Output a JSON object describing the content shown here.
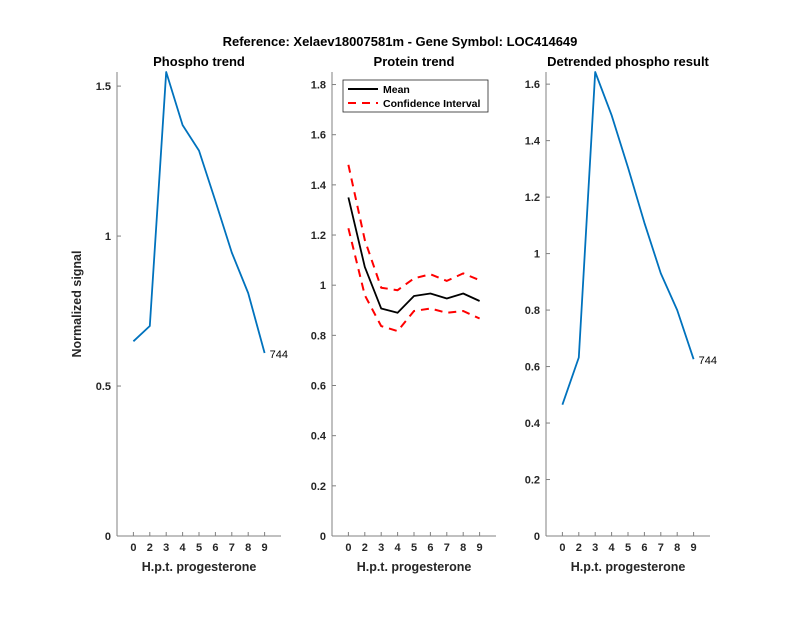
{
  "figure_title": "Reference:  Xelaev18007581m - Gene Symbol:  LOC414649",
  "chart_data": [
    {
      "type": "line",
      "title": "Phospho trend",
      "xlabel": "H.p.t. progesterone",
      "ylabel": "Normalized signal",
      "categories": [
        "0",
        "2",
        "3",
        "4",
        "5",
        "6",
        "7",
        "8",
        "9"
      ],
      "ylim": [
        0,
        1.547
      ],
      "yticks": [
        0,
        0.5,
        1,
        1.5
      ],
      "ytick_labels": [
        "0",
        "0.5",
        "1",
        "1.5"
      ],
      "series": [
        {
          "name": "Phospho",
          "color": "#0072BD",
          "style": "solid",
          "values": [
            0.649,
            0.7,
            1.547,
            1.37,
            1.285,
            1.117,
            0.945,
            0.81,
            0.61
          ]
        }
      ],
      "annotation": "744"
    },
    {
      "type": "line",
      "title": "Protein trend",
      "xlabel": "H.p.t. progesterone",
      "ylabel": "",
      "categories": [
        "0",
        "2",
        "3",
        "4",
        "5",
        "6",
        "7",
        "8",
        "9"
      ],
      "ylim": [
        0,
        1.85
      ],
      "yticks": [
        0,
        0.2,
        0.4,
        0.6,
        0.8,
        1,
        1.2,
        1.4,
        1.6,
        1.8
      ],
      "ytick_labels": [
        "0",
        "0.2",
        "0.4",
        "0.6",
        "0.8",
        "1",
        "1.2",
        "1.4",
        "1.6",
        "1.8"
      ],
      "legend": {
        "placement": "top-right",
        "entries": [
          "Mean",
          "Confidence Interval"
        ]
      },
      "series": [
        {
          "name": "Mean",
          "color": "#000000",
          "style": "solid",
          "values": [
            1.35,
            1.073,
            0.907,
            0.89,
            0.957,
            0.967,
            0.947,
            0.967,
            0.937
          ]
        },
        {
          "name": "Confidence Interval (upper)",
          "color": "#FF0000",
          "style": "dashed",
          "values": [
            1.48,
            1.18,
            0.99,
            0.98,
            1.027,
            1.044,
            1.017,
            1.047,
            1.02
          ]
        },
        {
          "name": "Confidence Interval (lower)",
          "color": "#FF0000",
          "style": "dashed",
          "values": [
            1.227,
            0.96,
            0.837,
            0.817,
            0.897,
            0.907,
            0.89,
            0.897,
            0.867
          ]
        }
      ]
    },
    {
      "type": "line",
      "title": "Detrended phospho result",
      "xlabel": "H.p.t. progesterone",
      "ylabel": "",
      "categories": [
        "0",
        "2",
        "3",
        "4",
        "5",
        "6",
        "7",
        "8",
        "9"
      ],
      "ylim": [
        0,
        1.643
      ],
      "yticks": [
        0,
        0.2,
        0.4,
        0.6,
        0.8,
        1,
        1.2,
        1.4,
        1.6
      ],
      "ytick_labels": [
        "0",
        "0.2",
        "0.4",
        "0.6",
        "0.8",
        "1",
        "1.2",
        "1.4",
        "1.6"
      ],
      "series": [
        {
          "name": "Detrended phospho",
          "color": "#0072BD",
          "style": "solid",
          "values": [
            0.465,
            0.632,
            1.643,
            1.49,
            1.305,
            1.109,
            0.93,
            0.8,
            0.626
          ]
        }
      ],
      "annotation": "744"
    }
  ]
}
